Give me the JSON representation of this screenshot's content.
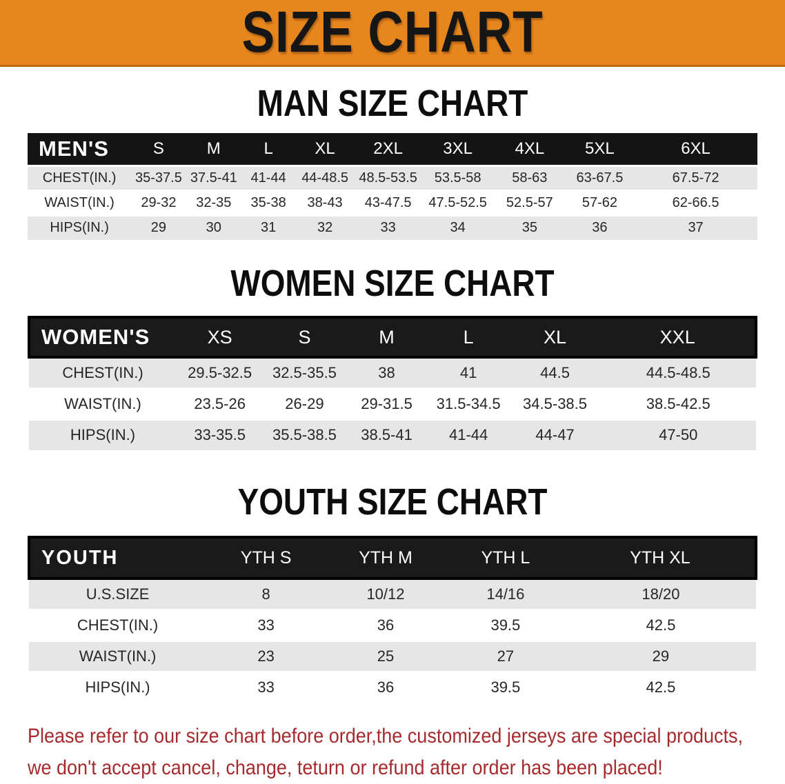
{
  "banner": {
    "title": "SIZE CHART"
  },
  "men": {
    "heading": "MAN SIZE CHART",
    "label": "MEN'S",
    "sizes": [
      "S",
      "M",
      "L",
      "XL",
      "2XL",
      "3XL",
      "4XL",
      "5XL",
      "6XL"
    ],
    "rows": [
      {
        "label": "CHEST(IN.)",
        "values": [
          "35-37.5",
          "37.5-41",
          "41-44",
          "44-48.5",
          "48.5-53.5",
          "53.5-58",
          "58-63",
          "63-67.5",
          "67.5-72"
        ]
      },
      {
        "label": "WAIST(IN.)",
        "values": [
          "29-32",
          "32-35",
          "35-38",
          "38-43",
          "43-47.5",
          "47.5-52.5",
          "52.5-57",
          "57-62",
          "62-66.5"
        ]
      },
      {
        "label": "HIPS(IN.)",
        "values": [
          "29",
          "30",
          "31",
          "32",
          "33",
          "34",
          "35",
          "36",
          "37"
        ]
      }
    ]
  },
  "women": {
    "heading": "WOMEN SIZE CHART",
    "label": "WOMEN'S",
    "sizes": [
      "XS",
      "S",
      "M",
      "L",
      "XL",
      "XXL"
    ],
    "rows": [
      {
        "label": "CHEST(IN.)",
        "values": [
          "29.5-32.5",
          "32.5-35.5",
          "38",
          "41",
          "44.5",
          "44.5-48.5"
        ]
      },
      {
        "label": "WAIST(IN.)",
        "values": [
          "23.5-26",
          "26-29",
          "29-31.5",
          "31.5-34.5",
          "34.5-38.5",
          "38.5-42.5"
        ]
      },
      {
        "label": "HIPS(IN.)",
        "values": [
          "33-35.5",
          "35.5-38.5",
          "38.5-41",
          "41-44",
          "44-47",
          "47-50"
        ]
      }
    ]
  },
  "youth": {
    "heading": "YOUTH SIZE CHART",
    "label": "YOUTH",
    "sizes": [
      "YTH S",
      "YTH M",
      "YTH L",
      "YTH XL"
    ],
    "rows": [
      {
        "label": "U.S.SIZE",
        "values": [
          "8",
          "10/12",
          "14/16",
          "18/20"
        ]
      },
      {
        "label": "CHEST(IN.)",
        "values": [
          "33",
          "36",
          "39.5",
          "42.5"
        ]
      },
      {
        "label": "WAIST(IN.)",
        "values": [
          "23",
          "25",
          "27",
          "29"
        ]
      },
      {
        "label": "HIPS(IN.)",
        "values": [
          "33",
          "36",
          "39.5",
          "42.5"
        ]
      }
    ]
  },
  "disclaimer": {
    "line1": "Please refer to our size chart before order,the customized jerseys are special products,",
    "line2": "we don't accept cancel, change, teturn or refund after order has been placed!"
  },
  "colors": {
    "banner-orange": "#E8861E",
    "banner-orange-dark": "#C1690E",
    "header-black": "#141414",
    "stripe-gray": "#E6E6E6",
    "body-text": "#262626",
    "disclaimer-red": "#A62A2D"
  }
}
